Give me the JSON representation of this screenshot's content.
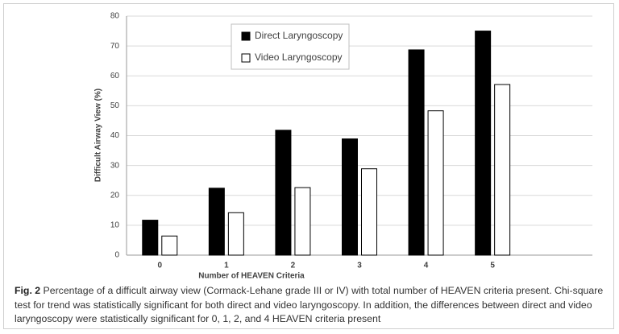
{
  "chart_data": {
    "type": "bar",
    "y_label": "Difficult Airway View (%)",
    "x_label": "Number of HEAVEN Criteria",
    "categories": [
      "0",
      "1",
      "2",
      "3",
      "4",
      "5"
    ],
    "series": [
      {
        "name": "Direct Laryngoscopy",
        "color": "#000000",
        "values": [
          11.7,
          22.4,
          41.8,
          38.9,
          68.7,
          75.0
        ]
      },
      {
        "name": "Video Laryngoscopy",
        "color": "#ffffff",
        "values": [
          6.4,
          14.2,
          22.6,
          28.9,
          48.3,
          57.1
        ]
      }
    ],
    "ylim": [
      0,
      80
    ],
    "yticks": [
      0,
      10,
      20,
      30,
      40,
      50,
      60,
      70,
      80
    ],
    "grid": true
  },
  "caption": {
    "label": "Fig. 2",
    "text": "Percentage of a difficult airway view (Cormack-Lehane grade III or IV) with total number of HEAVEN criteria present. Chi-square test for trend was statistically significant for both direct and video laryngoscopy. In addition, the differences between direct and video laryngoscopy were statistically significant for 0, 1, 2, and 4 HEAVEN criteria present"
  }
}
